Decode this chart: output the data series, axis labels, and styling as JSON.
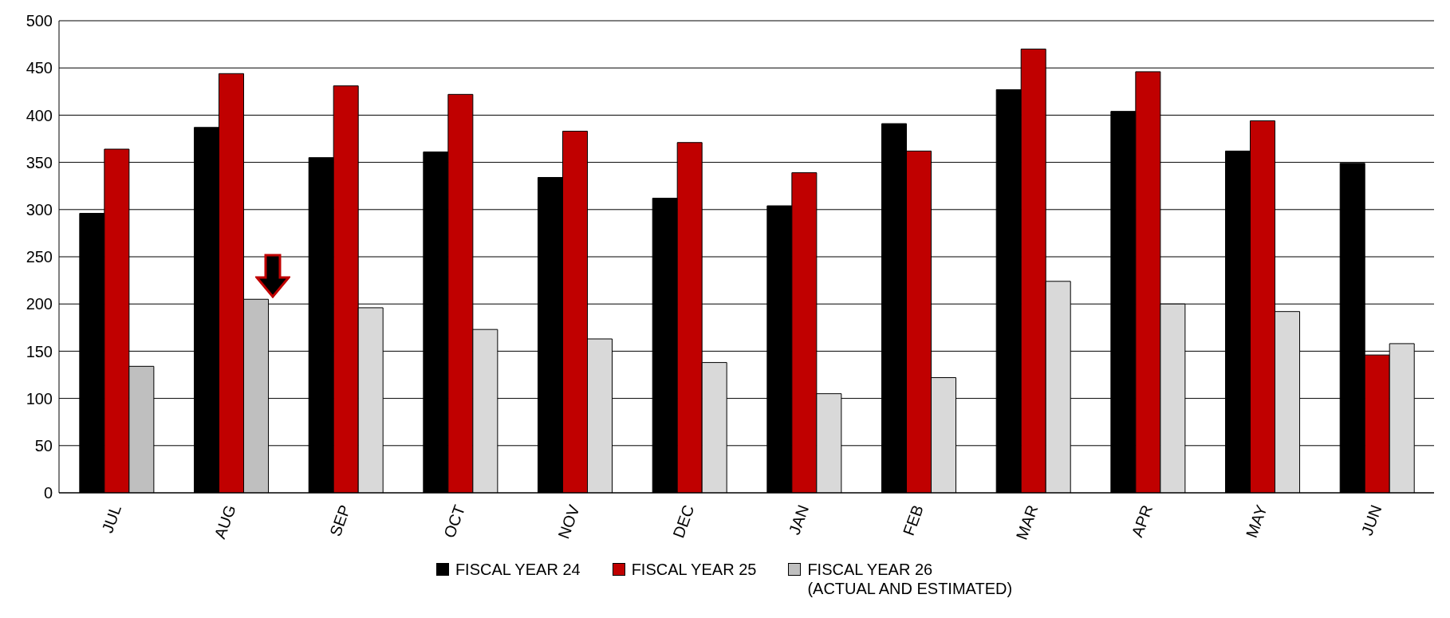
{
  "chart_data": {
    "type": "bar",
    "categories": [
      "JUL",
      "AUG",
      "SEP",
      "OCT",
      "NOV",
      "DEC",
      "JAN",
      "FEB",
      "MAR",
      "APR",
      "MAY",
      "JUN"
    ],
    "series": [
      {
        "name": "FISCAL YEAR 24",
        "color": "#000000",
        "values": [
          296,
          387,
          355,
          361,
          334,
          312,
          304,
          391,
          427,
          404,
          362,
          349
        ]
      },
      {
        "name": "FISCAL YEAR 25",
        "color": "#c00000",
        "values": [
          364,
          444,
          431,
          422,
          383,
          371,
          339,
          362,
          470,
          446,
          394,
          146
        ]
      },
      {
        "name": "FISCAL YEAR 26\n(ACTUAL AND ESTIMATED)",
        "color": "#bfbfbf",
        "colors": [
          "#bfbfbf",
          "#bfbfbf",
          "#d9d9d9",
          "#d9d9d9",
          "#d9d9d9",
          "#d9d9d9",
          "#d9d9d9",
          "#d9d9d9",
          "#d9d9d9",
          "#d9d9d9",
          "#d9d9d9",
          "#d9d9d9"
        ],
        "values": [
          134,
          205,
          196,
          173,
          163,
          138,
          105,
          122,
          224,
          200,
          192,
          158
        ]
      }
    ],
    "ylim": [
      0,
      500
    ],
    "yticks": [
      0,
      50,
      100,
      150,
      200,
      250,
      300,
      350,
      400,
      450,
      500
    ],
    "grid": "y",
    "legend": "bottom"
  }
}
